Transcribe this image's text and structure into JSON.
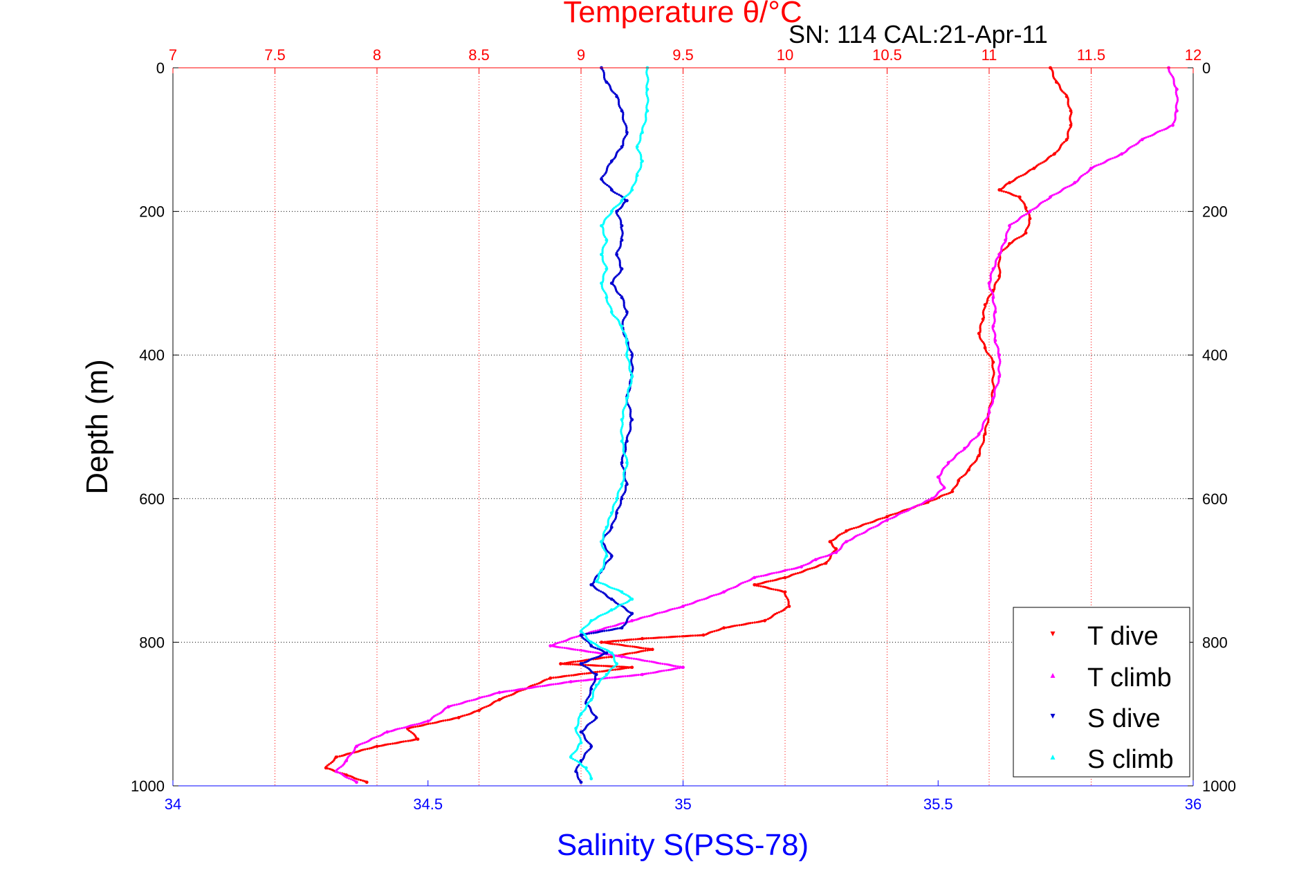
{
  "chart_data": {
    "type": "scatter",
    "title": "Temperature θ/°C",
    "subtitle": "SN: 114  CAL:21-Apr-11",
    "xlabel_top": "Temperature θ/°C",
    "xlabel_bottom": "Salinity S(PSS-78)",
    "ylabel": "Depth (m)",
    "xlim_top": [
      7,
      12
    ],
    "xlim_bottom": [
      34,
      36
    ],
    "ylim": [
      0,
      1000
    ],
    "y_reversed": true,
    "grid": true,
    "legend_placement": "bottom-right",
    "x_ticks_top": [
      "7",
      "7.5",
      "8",
      "8.5",
      "9",
      "9.5",
      "10",
      "10.5",
      "11",
      "11.5",
      "12"
    ],
    "x_ticks_bottom": [
      "34",
      "34.5",
      "35",
      "35.5",
      "36"
    ],
    "y_ticks": [
      "0",
      "200",
      "400",
      "600",
      "800",
      "1000"
    ],
    "series": [
      {
        "name": "T dive",
        "color": "#ff0000",
        "axis": "top",
        "marker": "triangle-down",
        "points": [
          [
            11.3,
            0
          ],
          [
            11.33,
            20
          ],
          [
            11.38,
            40
          ],
          [
            11.4,
            60
          ],
          [
            11.4,
            80
          ],
          [
            11.38,
            100
          ],
          [
            11.32,
            120
          ],
          [
            11.22,
            140
          ],
          [
            11.1,
            160
          ],
          [
            11.05,
            170
          ],
          [
            11.15,
            180
          ],
          [
            11.18,
            195
          ],
          [
            11.2,
            210
          ],
          [
            11.18,
            230
          ],
          [
            11.1,
            245
          ],
          [
            11.05,
            260
          ],
          [
            11.05,
            290
          ],
          [
            11.02,
            310
          ],
          [
            10.98,
            330
          ],
          [
            10.97,
            350
          ],
          [
            10.95,
            370
          ],
          [
            10.98,
            390
          ],
          [
            11.02,
            410
          ],
          [
            11.02,
            450
          ],
          [
            11.0,
            480
          ],
          [
            10.98,
            510
          ],
          [
            10.95,
            540
          ],
          [
            10.9,
            560
          ],
          [
            10.85,
            575
          ],
          [
            10.82,
            590
          ],
          [
            10.7,
            605
          ],
          [
            10.5,
            625
          ],
          [
            10.3,
            645
          ],
          [
            10.22,
            660
          ],
          [
            10.25,
            670
          ],
          [
            10.2,
            690
          ],
          [
            10.0,
            710
          ],
          [
            9.85,
            720
          ],
          [
            10.0,
            730
          ],
          [
            10.02,
            750
          ],
          [
            9.9,
            770
          ],
          [
            9.7,
            780
          ],
          [
            9.6,
            790
          ],
          [
            9.3,
            795
          ],
          [
            9.1,
            800
          ],
          [
            9.35,
            810
          ],
          [
            9.15,
            820
          ],
          [
            8.9,
            830
          ],
          [
            9.25,
            835
          ],
          [
            8.85,
            850
          ],
          [
            8.6,
            880
          ],
          [
            8.5,
            895
          ],
          [
            8.4,
            905
          ],
          [
            8.15,
            920
          ],
          [
            8.2,
            935
          ],
          [
            8.0,
            945
          ],
          [
            7.8,
            960
          ],
          [
            7.75,
            975
          ],
          [
            7.85,
            985
          ],
          [
            7.95,
            995
          ]
        ]
      },
      {
        "name": "T climb",
        "color": "#ff00ff",
        "axis": "top",
        "marker": "triangle-up",
        "points": [
          [
            11.88,
            0
          ],
          [
            11.92,
            30
          ],
          [
            11.92,
            60
          ],
          [
            11.9,
            80
          ],
          [
            11.75,
            100
          ],
          [
            11.65,
            120
          ],
          [
            11.5,
            140
          ],
          [
            11.42,
            160
          ],
          [
            11.3,
            180
          ],
          [
            11.2,
            200
          ],
          [
            11.1,
            220
          ],
          [
            11.08,
            240
          ],
          [
            11.05,
            260
          ],
          [
            11.02,
            280
          ],
          [
            11.0,
            300
          ],
          [
            11.02,
            320
          ],
          [
            11.03,
            340
          ],
          [
            11.02,
            360
          ],
          [
            11.03,
            380
          ],
          [
            11.05,
            400
          ],
          [
            11.05,
            430
          ],
          [
            11.02,
            460
          ],
          [
            11.0,
            480
          ],
          [
            10.95,
            510
          ],
          [
            10.88,
            530
          ],
          [
            10.8,
            550
          ],
          [
            10.75,
            570
          ],
          [
            10.78,
            585
          ],
          [
            10.72,
            600
          ],
          [
            10.5,
            630
          ],
          [
            10.3,
            660
          ],
          [
            10.25,
            675
          ],
          [
            10.15,
            685
          ],
          [
            10.08,
            695
          ],
          [
            9.85,
            710
          ],
          [
            9.7,
            730
          ],
          [
            9.5,
            750
          ],
          [
            9.25,
            770
          ],
          [
            9.0,
            790
          ],
          [
            8.85,
            805
          ],
          [
            9.2,
            820
          ],
          [
            9.5,
            835
          ],
          [
            9.3,
            845
          ],
          [
            8.95,
            855
          ],
          [
            8.6,
            870
          ],
          [
            8.35,
            890
          ],
          [
            8.25,
            910
          ],
          [
            8.05,
            925
          ],
          [
            7.9,
            945
          ],
          [
            7.85,
            965
          ],
          [
            7.8,
            980
          ],
          [
            7.9,
            995
          ]
        ]
      },
      {
        "name": "S dive",
        "color": "#0000d0",
        "axis": "bottom",
        "marker": "triangle-down",
        "points": [
          [
            34.84,
            0
          ],
          [
            34.85,
            20
          ],
          [
            34.87,
            40
          ],
          [
            34.88,
            60
          ],
          [
            34.89,
            90
          ],
          [
            34.88,
            110
          ],
          [
            34.86,
            130
          ],
          [
            34.84,
            155
          ],
          [
            34.86,
            170
          ],
          [
            34.89,
            185
          ],
          [
            34.87,
            200
          ],
          [
            34.88,
            220
          ],
          [
            34.88,
            240
          ],
          [
            34.87,
            260
          ],
          [
            34.88,
            280
          ],
          [
            34.86,
            300
          ],
          [
            34.88,
            320
          ],
          [
            34.89,
            340
          ],
          [
            34.88,
            360
          ],
          [
            34.89,
            380
          ],
          [
            34.9,
            400
          ],
          [
            34.9,
            430
          ],
          [
            34.89,
            460
          ],
          [
            34.9,
            490
          ],
          [
            34.89,
            520
          ],
          [
            34.88,
            550
          ],
          [
            34.89,
            580
          ],
          [
            34.88,
            600
          ],
          [
            34.87,
            620
          ],
          [
            34.86,
            640
          ],
          [
            34.84,
            660
          ],
          [
            34.86,
            680
          ],
          [
            34.84,
            700
          ],
          [
            34.82,
            720
          ],
          [
            34.86,
            740
          ],
          [
            34.9,
            760
          ],
          [
            34.88,
            780
          ],
          [
            34.8,
            790
          ],
          [
            34.82,
            805
          ],
          [
            34.85,
            815
          ],
          [
            34.8,
            830
          ],
          [
            34.83,
            845
          ],
          [
            34.82,
            865
          ],
          [
            34.81,
            885
          ],
          [
            34.83,
            905
          ],
          [
            34.8,
            925
          ],
          [
            34.82,
            945
          ],
          [
            34.8,
            965
          ],
          [
            34.79,
            980
          ],
          [
            34.8,
            995
          ]
        ]
      },
      {
        "name": "S climb",
        "color": "#00ffff",
        "axis": "bottom",
        "marker": "triangle-up",
        "points": [
          [
            34.93,
            0
          ],
          [
            34.93,
            30
          ],
          [
            34.93,
            60
          ],
          [
            34.92,
            90
          ],
          [
            34.91,
            110
          ],
          [
            34.92,
            130
          ],
          [
            34.91,
            150
          ],
          [
            34.9,
            170
          ],
          [
            34.88,
            185
          ],
          [
            34.86,
            200
          ],
          [
            34.84,
            220
          ],
          [
            34.85,
            240
          ],
          [
            34.84,
            260
          ],
          [
            34.85,
            280
          ],
          [
            34.84,
            300
          ],
          [
            34.85,
            320
          ],
          [
            34.86,
            340
          ],
          [
            34.88,
            360
          ],
          [
            34.89,
            380
          ],
          [
            34.89,
            400
          ],
          [
            34.9,
            430
          ],
          [
            34.89,
            460
          ],
          [
            34.88,
            490
          ],
          [
            34.88,
            520
          ],
          [
            34.89,
            550
          ],
          [
            34.88,
            580
          ],
          [
            34.87,
            600
          ],
          [
            34.86,
            620
          ],
          [
            34.85,
            640
          ],
          [
            34.84,
            660
          ],
          [
            34.85,
            680
          ],
          [
            34.84,
            700
          ],
          [
            34.83,
            715
          ],
          [
            34.88,
            730
          ],
          [
            34.9,
            740
          ],
          [
            34.86,
            755
          ],
          [
            34.82,
            770
          ],
          [
            34.8,
            785
          ],
          [
            34.82,
            800
          ],
          [
            34.86,
            815
          ],
          [
            34.87,
            830
          ],
          [
            34.85,
            845
          ],
          [
            34.83,
            860
          ],
          [
            34.82,
            880
          ],
          [
            34.8,
            900
          ],
          [
            34.79,
            920
          ],
          [
            34.8,
            940
          ],
          [
            34.78,
            960
          ],
          [
            34.81,
            975
          ],
          [
            34.82,
            990
          ]
        ]
      }
    ]
  }
}
